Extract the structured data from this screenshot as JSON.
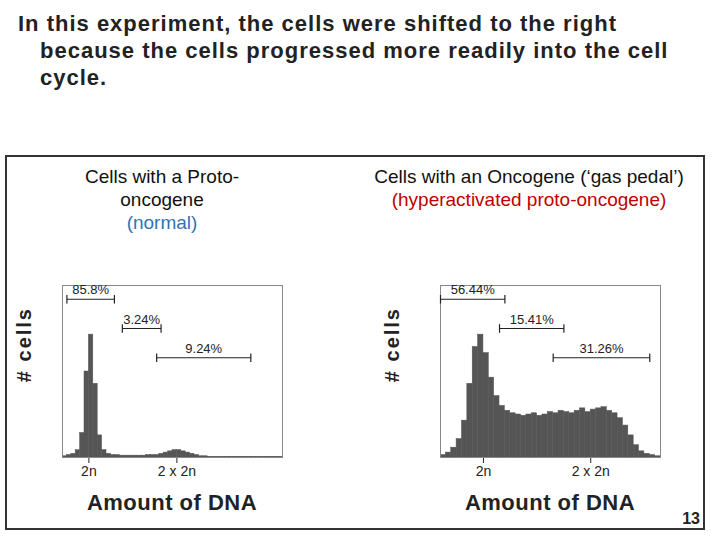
{
  "heading": "In this experiment, the cells were shifted to the right because the cells progressed more readily into the cell cycle.",
  "page_number": "13",
  "chart_data": [
    {
      "type": "histogram",
      "title": "Cells with a Proto-oncogene",
      "subtitle": "(normal)",
      "xlabel": "Amount of DNA",
      "ylabel": "# cells",
      "bins": [
        0.7,
        0.75,
        0.8,
        0.85,
        0.9,
        0.95,
        1.0,
        1.05,
        1.1,
        1.15,
        1.2,
        1.25,
        1.3,
        1.35,
        1.4,
        1.45,
        1.5,
        1.55,
        1.6,
        1.65,
        1.7,
        1.75,
        1.8,
        1.85,
        1.9,
        1.95,
        2.0,
        2.05,
        2.1,
        2.15,
        2.2,
        2.25,
        2.3,
        2.35,
        2.4,
        2.45,
        2.5,
        2.55,
        2.6,
        2.65,
        2.7,
        2.75,
        2.8,
        2.85,
        2.9,
        2.95,
        3.0,
        3.05,
        3.1,
        3.15,
        3.2
      ],
      "counts": [
        1,
        2,
        3,
        6,
        20,
        70,
        100,
        60,
        18,
        6,
        3,
        2,
        2,
        1.5,
        1.5,
        1.5,
        1.5,
        1.5,
        1.5,
        2,
        2,
        2,
        3,
        4,
        5,
        6,
        6,
        5,
        4,
        3,
        2,
        1,
        1,
        0.5,
        0.5,
        0.5,
        0.5,
        0.5,
        0.5,
        0.5,
        0.5,
        0.5,
        0.5,
        0.5,
        0.5,
        0.5,
        0.5,
        0.5,
        0.5,
        0.5
      ],
      "color": "#555555",
      "xlim": [
        0.7,
        3.2
      ],
      "xticks": [
        {
          "value": 1,
          "label": "2n"
        },
        {
          "value": 2,
          "label": "2 x 2n"
        }
      ],
      "ylim": [
        0,
        140
      ],
      "tick_labels": "x",
      "gates": {
        "values": [
          85.8,
          3.24,
          9.24
        ],
        "value_labels": [
          "85.8%",
          "3.24%",
          "9.24%"
        ],
        "ranges": [
          [
            0.75,
            1.29
          ],
          [
            1.38,
            1.82
          ],
          [
            1.77,
            2.84
          ]
        ]
      }
    },
    {
      "type": "histogram",
      "title": "Cells with an Oncogene (‘gas pedal’)",
      "subtitle": "(hyperactivated proto-oncogene)",
      "xlabel": "Amount of DNA",
      "ylabel": "# cells",
      "bins": [
        0.6,
        0.65,
        0.7,
        0.75,
        0.8,
        0.85,
        0.9,
        0.95,
        1.0,
        1.05,
        1.1,
        1.15,
        1.2,
        1.25,
        1.3,
        1.35,
        1.4,
        1.45,
        1.5,
        1.55,
        1.6,
        1.65,
        1.7,
        1.75,
        1.8,
        1.85,
        1.9,
        1.95,
        2.0,
        2.05,
        2.1,
        2.15,
        2.2,
        2.25,
        2.3,
        2.35,
        2.4,
        2.45,
        2.5,
        2.55,
        2.6,
        2.65
      ],
      "counts": [
        2,
        4,
        8,
        15,
        30,
        60,
        90,
        100,
        85,
        65,
        50,
        42,
        38,
        36,
        35,
        34,
        35,
        36,
        34,
        35,
        37,
        36,
        38,
        37,
        36,
        38,
        40,
        37,
        39,
        40,
        41,
        38,
        36,
        32,
        26,
        18,
        10,
        5,
        3,
        2,
        1
      ],
      "color": "#555555",
      "xlim": [
        0.6,
        2.65
      ],
      "xticks": [
        {
          "value": 1,
          "label": "2n"
        },
        {
          "value": 2,
          "label": "2 x 2n"
        }
      ],
      "ylim": [
        0,
        140
      ],
      "tick_labels": "x",
      "gates": {
        "values": [
          56.44,
          15.41,
          31.26
        ],
        "value_labels": [
          "56.44%",
          "15.41%",
          "31.26%"
        ],
        "ranges": [
          [
            0.6,
            1.2
          ],
          [
            1.15,
            1.75
          ],
          [
            1.65,
            2.55
          ]
        ]
      }
    }
  ]
}
